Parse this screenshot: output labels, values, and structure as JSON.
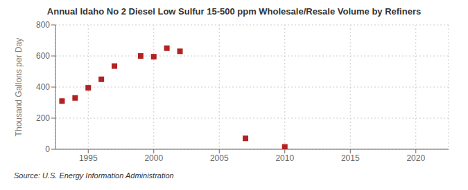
{
  "chart_data": {
    "type": "scatter",
    "title": "Annual Idaho No 2 Diesel Low Sulfur 15-500 ppm Wholesale/Resale Volume by Refiners",
    "y_label": "Thousand Gallons per Day",
    "annotations": [
      "Source: U.S. Energy Information Administration"
    ],
    "x": [
      1993,
      1994,
      1995,
      1996,
      1997,
      1999,
      2000,
      2001,
      2002,
      2007,
      2010
    ],
    "values": [
      310,
      330,
      395,
      450,
      535,
      600,
      595,
      650,
      630,
      70,
      15
    ],
    "color": "#b22222",
    "marker": "square",
    "xlim": [
      1992.5,
      2022.5
    ],
    "ylim": [
      0,
      800
    ],
    "xticks": [
      1995,
      2000,
      2005,
      2010,
      2015,
      2020
    ],
    "yticks": [
      0,
      200,
      400,
      600,
      800
    ],
    "grid": true
  }
}
